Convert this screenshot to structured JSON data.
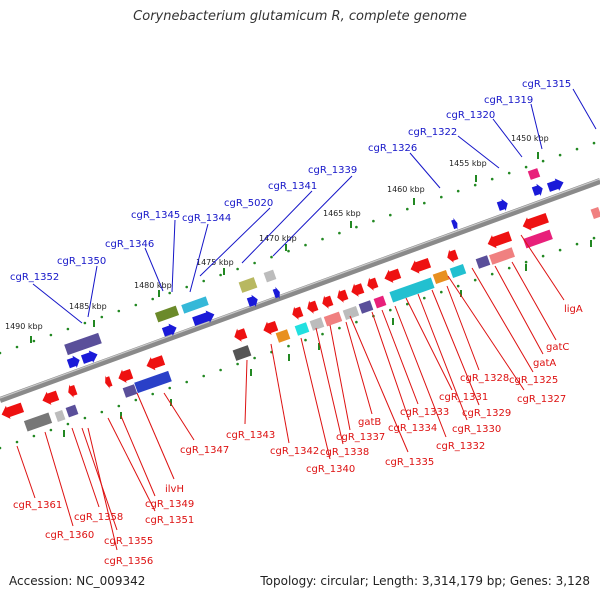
{
  "title": "Corynebacterium glutamicum R, complete genome",
  "footer": {
    "accession": "Accession: NC_009342",
    "info": "Topology: circular; Length: 3,314,179 bp; Genes: 3,128"
  },
  "colors": {
    "forward_label": "#1515c8",
    "reverse_label": "#dd1111",
    "backbone": "#8a8a8a",
    "tick": "#228822"
  },
  "kbp_labels": [
    "1450 kbp",
    "1455 kbp",
    "1460 kbp",
    "1465 kbp",
    "1470 kbp",
    "1475 kbp",
    "1480 kbp",
    "1485 kbp",
    "1490 kbp"
  ],
  "forward_genes": [
    "cgR_1315",
    "cgR_1319",
    "cgR_1320",
    "cgR_1322",
    "cgR_1326",
    "cgR_1339",
    "cgR_1341",
    "cgR_5020",
    "cgR_1344",
    "cgR_1345",
    "cgR_1346",
    "cgR_1350",
    "cgR_1352"
  ],
  "reverse_genes": [
    "ligA",
    "gatC",
    "gatA",
    "cgR_1325",
    "cgR_1327",
    "cgR_1328",
    "cgR_1329",
    "cgR_1330",
    "cgR_1331",
    "cgR_1332",
    "cgR_1333",
    "cgR_1334",
    "cgR_1335",
    "gatB",
    "cgR_1337",
    "cgR_1338",
    "cgR_1340",
    "cgR_1342",
    "cgR_1343",
    "cgR_1347",
    "ilvH",
    "cgR_1349",
    "cgR_1351",
    "cgR_1358",
    "cgR_1355",
    "cgR_1356",
    "cgR_1360",
    "cgR_1361"
  ]
}
